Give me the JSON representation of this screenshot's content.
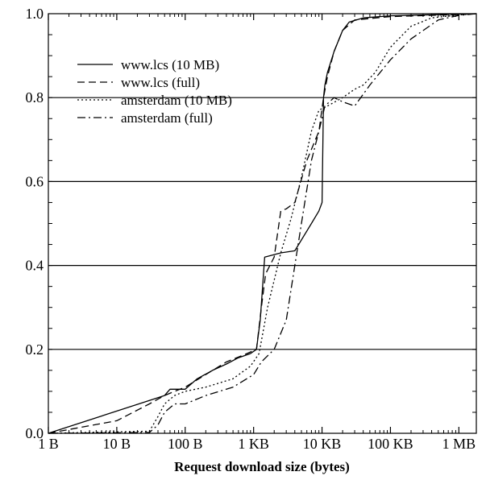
{
  "chart_data": {
    "type": "line",
    "title": "",
    "xlabel": "Request download size (bytes)",
    "ylabel": "",
    "x_scale": "log",
    "xlim": [
      1,
      1800000
    ],
    "ylim": [
      0,
      1
    ],
    "xticks": [
      {
        "value": 1,
        "label": "1 B"
      },
      {
        "value": 10,
        "label": "10 B"
      },
      {
        "value": 100,
        "label": "100 B"
      },
      {
        "value": 1000,
        "label": "1 KB"
      },
      {
        "value": 10000,
        "label": "10 KB"
      },
      {
        "value": 100000,
        "label": "100 KB"
      },
      {
        "value": 1000000,
        "label": "1 MB"
      }
    ],
    "yticks": [
      {
        "value": 0.0,
        "label": "0.0"
      },
      {
        "value": 0.2,
        "label": "0.2"
      },
      {
        "value": 0.4,
        "label": "0.4"
      },
      {
        "value": 0.6,
        "label": "0.6"
      },
      {
        "value": 0.8,
        "label": "0.8"
      },
      {
        "value": 1.0,
        "label": "1.0"
      }
    ],
    "grid": "horizontal",
    "legend_position": "top-left",
    "series": [
      {
        "name": "www.lcs (10 MB)",
        "style": "solid",
        "x": [
          1,
          50,
          60,
          100,
          150,
          250,
          400,
          600,
          900,
          1100,
          1250,
          1450,
          2500,
          4000,
          7000,
          9000,
          10000,
          10500,
          11000,
          12000,
          15000,
          20000,
          25000,
          40000,
          100000,
          300000,
          1000000,
          1800000
        ],
        "y": [
          0,
          0.09,
          0.105,
          0.105,
          0.13,
          0.15,
          0.165,
          0.18,
          0.19,
          0.2,
          0.27,
          0.42,
          0.43,
          0.435,
          0.5,
          0.53,
          0.55,
          0.8,
          0.83,
          0.86,
          0.91,
          0.96,
          0.98,
          0.99,
          0.995,
          0.997,
          0.999,
          1.0
        ]
      },
      {
        "name": "www.lcs (full)",
        "style": "dashed",
        "x": [
          1,
          10,
          30,
          50,
          70,
          100,
          200,
          400,
          800,
          1100,
          1300,
          1500,
          2000,
          2500,
          3000,
          4000,
          6000,
          9000,
          10500,
          12000,
          15000,
          20000,
          30000,
          100000,
          1000000,
          1800000
        ],
        "y": [
          0,
          0.03,
          0.07,
          0.09,
          0.1,
          0.11,
          0.14,
          0.17,
          0.19,
          0.2,
          0.3,
          0.38,
          0.42,
          0.53,
          0.535,
          0.55,
          0.65,
          0.72,
          0.8,
          0.85,
          0.91,
          0.96,
          0.985,
          0.993,
          0.998,
          1.0
        ]
      },
      {
        "name": "amsterdam (10 MB)",
        "style": "dotted",
        "x": [
          1,
          30,
          40,
          50,
          70,
          100,
          200,
          500,
          900,
          1200,
          1600,
          2500,
          3500,
          5000,
          7000,
          9000,
          12000,
          20000,
          30000,
          40000,
          60000,
          100000,
          200000,
          400000,
          1000000,
          1800000
        ],
        "y": [
          0,
          0.005,
          0.04,
          0.07,
          0.09,
          0.1,
          0.11,
          0.13,
          0.16,
          0.19,
          0.3,
          0.43,
          0.51,
          0.61,
          0.72,
          0.77,
          0.78,
          0.8,
          0.82,
          0.83,
          0.86,
          0.92,
          0.97,
          0.99,
          0.997,
          1.0
        ]
      },
      {
        "name": "amsterdam (full)",
        "style": "dashdot",
        "x": [
          1,
          30,
          40,
          50,
          70,
          100,
          200,
          500,
          1000,
          1300,
          2000,
          3000,
          4000,
          5000,
          7000,
          9000,
          11000,
          15000,
          20000,
          30000,
          50000,
          100000,
          200000,
          500000,
          1000000,
          1800000
        ],
        "y": [
          0,
          0.002,
          0.02,
          0.05,
          0.07,
          0.07,
          0.09,
          0.11,
          0.14,
          0.17,
          0.2,
          0.27,
          0.4,
          0.5,
          0.65,
          0.72,
          0.78,
          0.8,
          0.79,
          0.78,
          0.83,
          0.89,
          0.94,
          0.985,
          0.996,
          1.0
        ]
      }
    ]
  }
}
